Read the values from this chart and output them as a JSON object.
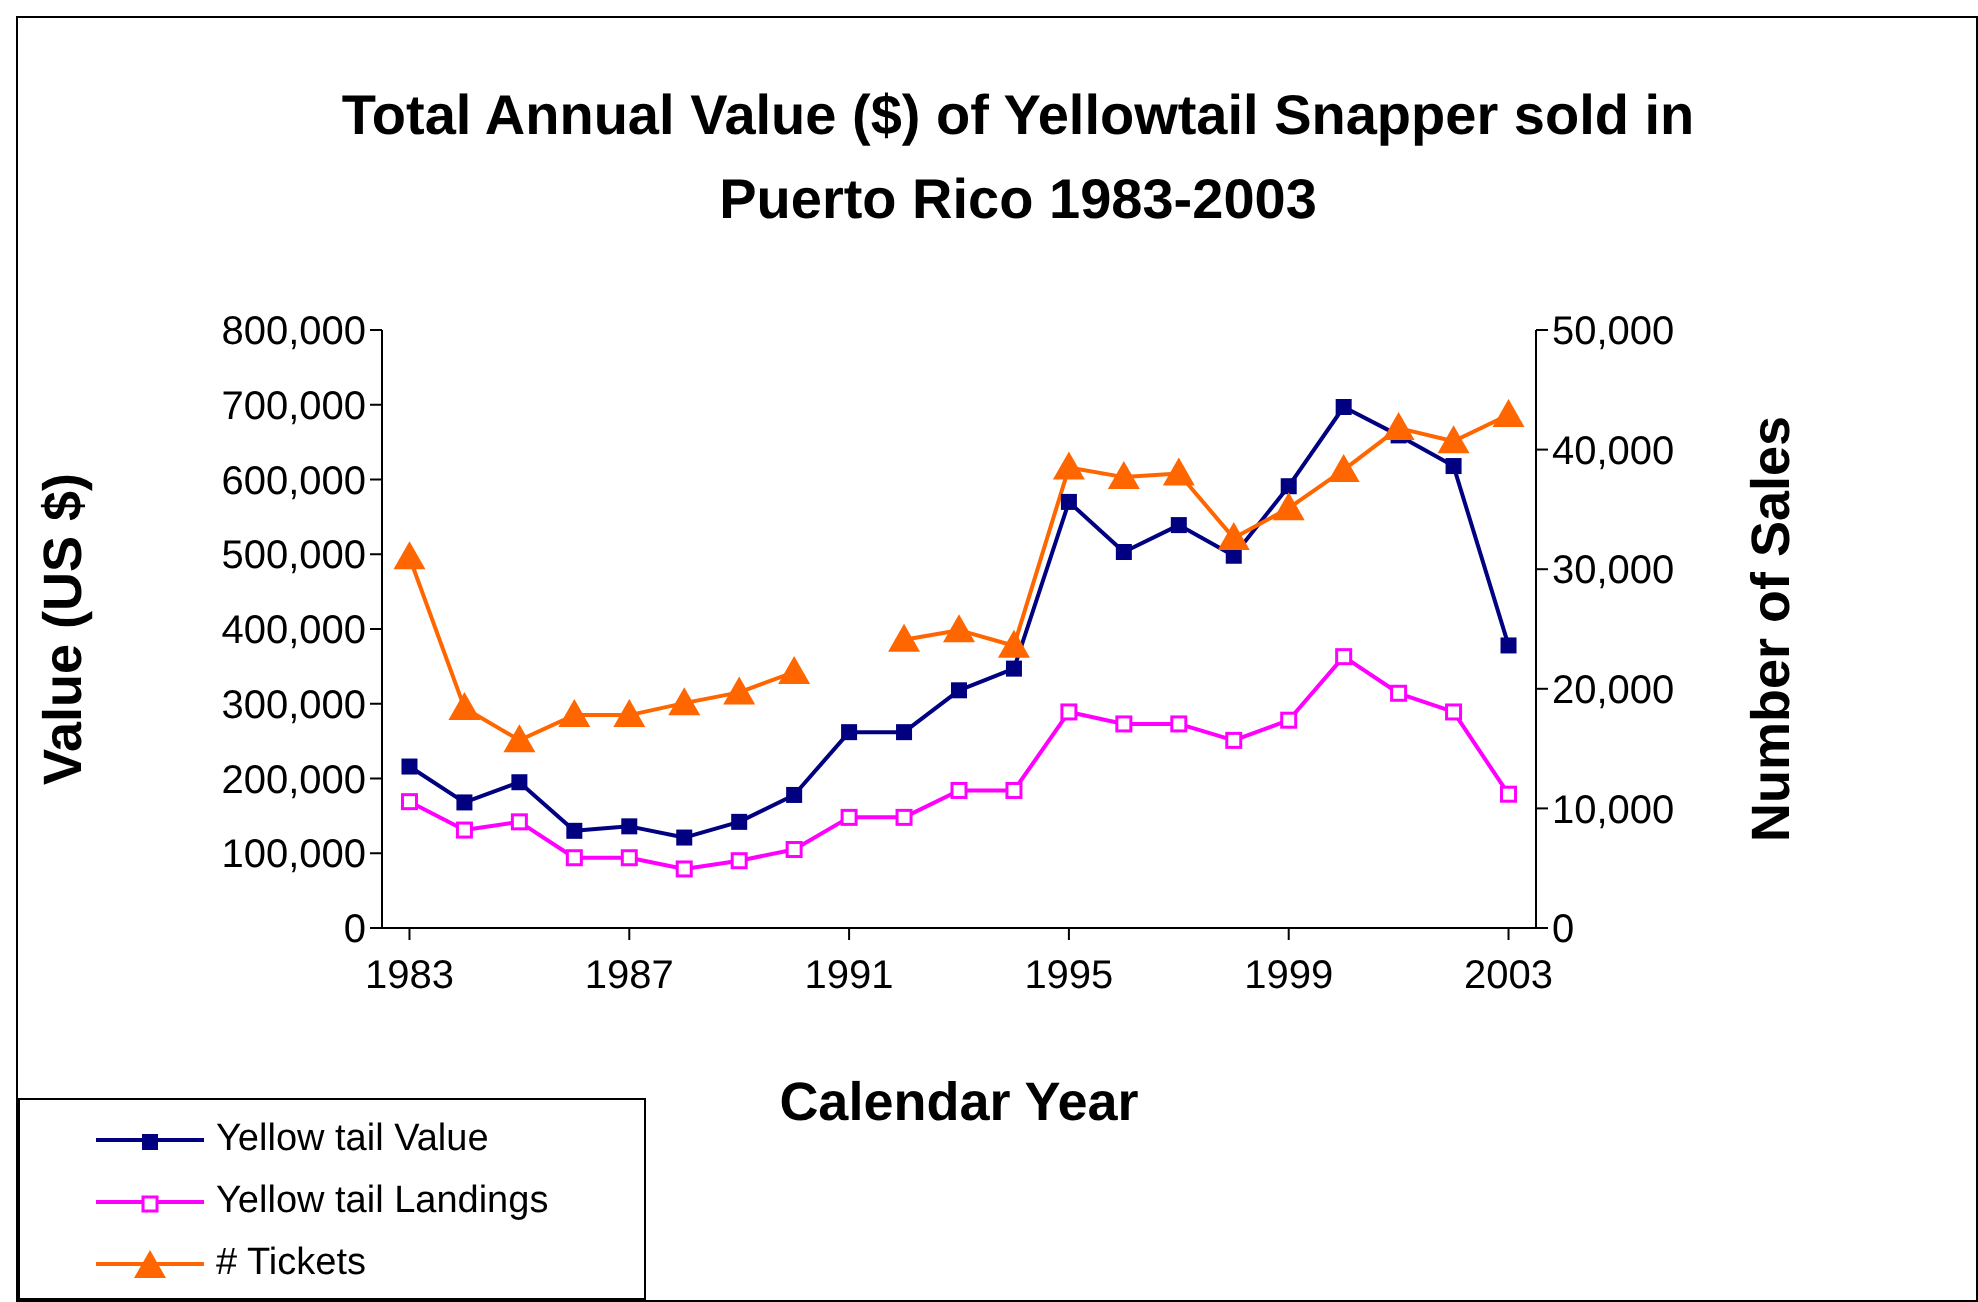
{
  "chart_data": {
    "type": "line",
    "title": "Total Annual Value ($) of Yellowtail Snapper sold in Puerto Rico 1983-2003",
    "xlabel": "Calendar Year",
    "ylabel": "Value (US $)",
    "y2label": "Number of Sales",
    "x": [
      1983,
      1984,
      1985,
      1986,
      1987,
      1988,
      1989,
      1990,
      1991,
      1992,
      1993,
      1994,
      1995,
      1996,
      1997,
      1998,
      1999,
      2000,
      2001,
      2002,
      2003
    ],
    "xlim": [
      1982.5,
      2003.5
    ],
    "xticks": [
      1983,
      1987,
      1991,
      1995,
      1999,
      2003
    ],
    "ylim": [
      0,
      800000
    ],
    "yticks": [
      0,
      {
        "value": 100000,
        "label": "100,000"
      },
      {
        "value": 200000,
        "label": "200,000"
      },
      {
        "value": 300000,
        "label": "300,000"
      },
      {
        "value": 400000,
        "label": "400,000"
      },
      {
        "value": 500000,
        "label": "500,000"
      },
      {
        "value": 600000,
        "label": "600,000"
      },
      {
        "value": 700000,
        "label": "700,000"
      },
      {
        "value": 800000,
        "label": "800,000"
      }
    ],
    "y2lim": [
      0,
      50000
    ],
    "y2ticks": [
      0,
      {
        "value": 10000,
        "label": "10,000"
      },
      {
        "value": 20000,
        "label": "20,000"
      },
      {
        "value": 30000,
        "label": "30,000"
      },
      {
        "value": 40000,
        "label": "40,000"
      },
      {
        "value": 50000,
        "label": "50,000"
      }
    ],
    "legend": "bottom left",
    "line_style": "solid",
    "series": [
      {
        "name": "Yellow tail Value",
        "color": "#000080",
        "marker": "square",
        "values": [
          216000,
          168000,
          195000,
          130000,
          136000,
          121000,
          142000,
          178000,
          262000,
          262000,
          318000,
          347000,
          570000,
          503000,
          539000,
          498000,
          591000,
          697000,
          659000,
          618000,
          378000
        ]
      },
      {
        "name": "Yellow tail Landings",
        "color": "#ff00ff",
        "marker": "square-open",
        "values": [
          169000,
          131000,
          142000,
          94000,
          94000,
          79000,
          90000,
          105000,
          148000,
          148000,
          184000,
          184000,
          289000,
          273000,
          273000,
          251000,
          278000,
          363000,
          314000,
          289000,
          179000
        ]
      },
      {
        "name": "# Tickets",
        "color": "#ff6600",
        "marker": "triangle",
        "axis": "y2",
        "values": [
          31000,
          18400,
          15700,
          17800,
          17800,
          18800,
          19700,
          21400,
          null,
          24100,
          24900,
          23600,
          38500,
          37700,
          38000,
          32600,
          35100,
          38300,
          41800,
          40700,
          42900
        ]
      }
    ]
  }
}
